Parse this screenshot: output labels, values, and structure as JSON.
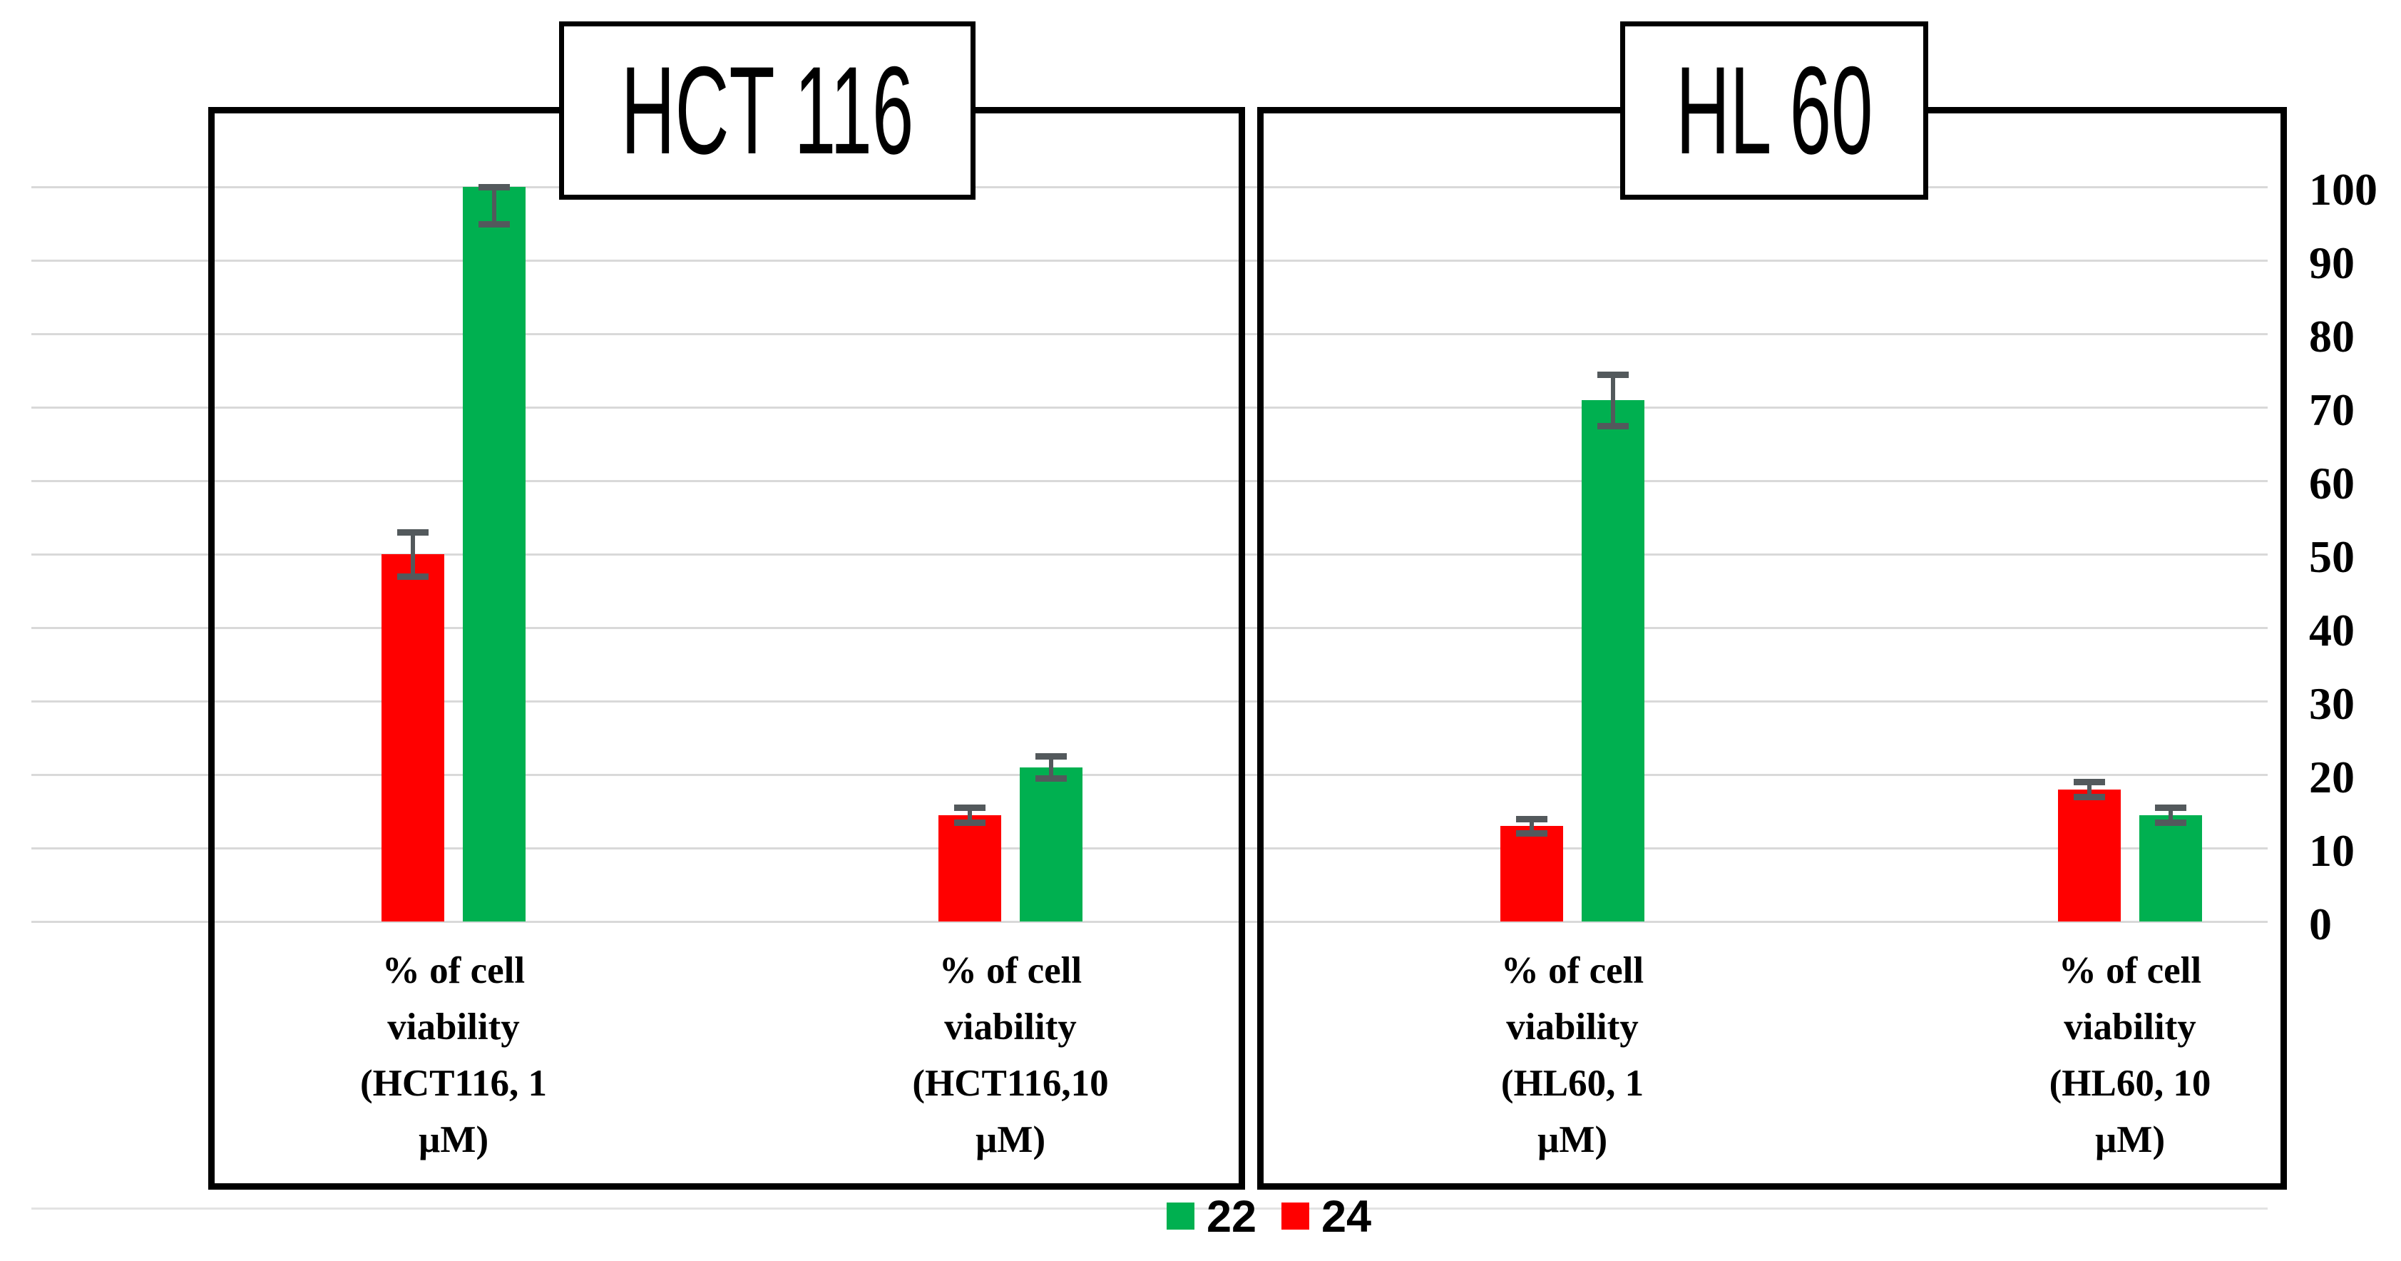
{
  "chart_data": {
    "type": "bar",
    "title": "",
    "description_note": "Grouped bar chart of % cell viability for compounds 22 and 24 against HCT 116 and HL 60 cell lines at 1 and 10 uM, with error bars",
    "ylabel": "",
    "xlabel": "",
    "ylim": [
      0,
      100
    ],
    "yticks": [
      100,
      90,
      80,
      70,
      60,
      50,
      40,
      30,
      20,
      10,
      0
    ],
    "grid": "horizontal light-gray gridlines every 10, y-axis labels on right side",
    "legend_position": "bottom-center",
    "legend": [
      {
        "name": "22",
        "color": "#00B050"
      },
      {
        "name": "24",
        "color": "#FF0000"
      }
    ],
    "panels": [
      {
        "title": "HCT 116",
        "groups": [
          {
            "category": "% of cell viability (HCT116, 1 µM)",
            "category_lines": [
              "% of cell",
              "viability",
              "(HCT116, 1",
              "µM)"
            ],
            "bars": [
              {
                "series": "24",
                "value": 50,
                "error": 3
              },
              {
                "series": "22",
                "value": 100,
                "error": 5
              }
            ]
          },
          {
            "category": "% of cell viability (HCT116,10 µM)",
            "category_lines": [
              "% of cell",
              "viability",
              "(HCT116,10",
              "µM)"
            ],
            "bars": [
              {
                "series": "24",
                "value": 14.5,
                "error": 1
              },
              {
                "series": "22",
                "value": 21,
                "error": 1.5
              }
            ]
          }
        ]
      },
      {
        "title": "HL 60",
        "groups": [
          {
            "category": "% of cell viability (HL60, 1 µM)",
            "category_lines": [
              "% of cell",
              "viability",
              "(HL60, 1",
              "µM)"
            ],
            "bars": [
              {
                "series": "24",
                "value": 13,
                "error": 1
              },
              {
                "series": "22",
                "value": 71,
                "error": 3.5
              }
            ]
          },
          {
            "category": "% of cell viability (HL60, 10 µM)",
            "category_lines": [
              "% of cell",
              "viability",
              "(HL60, 10",
              "µM)"
            ],
            "bars": [
              {
                "series": "24",
                "value": 18,
                "error": 1
              },
              {
                "series": "22",
                "value": 14.5,
                "error": 1
              }
            ]
          }
        ]
      }
    ],
    "colors": {
      "series_22": "#00B050",
      "series_24": "#FF0000",
      "error_bar": "#53595C",
      "gridline": "#D9D9D9",
      "panel_border": "#000000",
      "background": "#FFFFFF"
    }
  }
}
